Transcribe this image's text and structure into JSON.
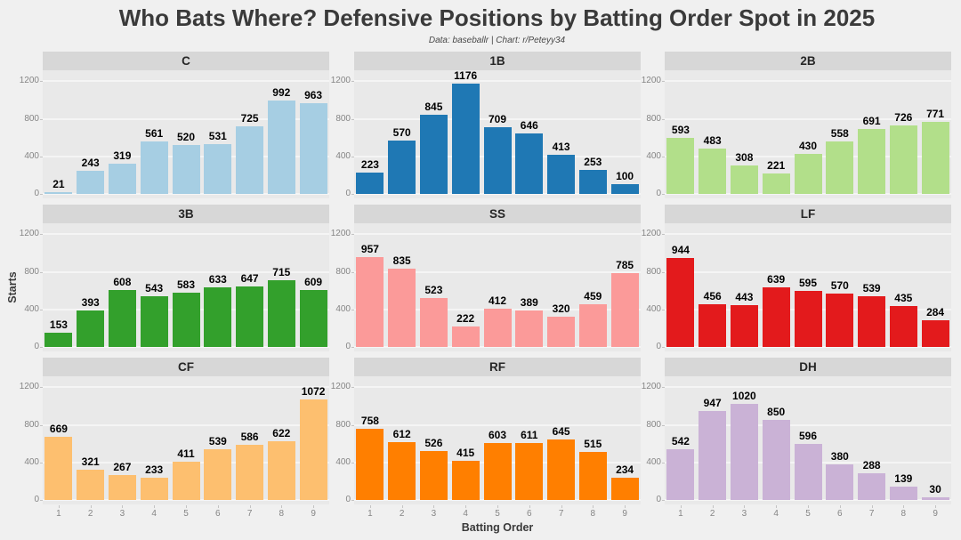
{
  "title": "Who Bats Where? Defensive Positions by Batting Order Spot in 2025",
  "subtitle": "Data: baseballr | Chart: r/Peteyy34",
  "chart_data": {
    "type": "bar",
    "layout": "3x3-facet-grid",
    "x": [
      1,
      2,
      3,
      4,
      5,
      6,
      7,
      8,
      9
    ],
    "xlabel": "Batting Order",
    "ylabel": "Starts",
    "yticks": [
      0,
      400,
      800,
      1200
    ],
    "ylim": [
      0,
      1200
    ],
    "grid": "major horizontal white lines on gray panel",
    "facets": [
      {
        "label": "C",
        "color": "#A6CEE3",
        "values": [
          21,
          243,
          319,
          561,
          520,
          531,
          725,
          992,
          963
        ]
      },
      {
        "label": "1B",
        "color": "#1F78B4",
        "values": [
          223,
          570,
          845,
          1176,
          709,
          646,
          413,
          253,
          100
        ]
      },
      {
        "label": "2B",
        "color": "#B2DF8A",
        "values": [
          593,
          483,
          308,
          221,
          430,
          558,
          691,
          726,
          771
        ]
      },
      {
        "label": "3B",
        "color": "#33A02C",
        "values": [
          153,
          393,
          608,
          543,
          583,
          633,
          647,
          715,
          609
        ]
      },
      {
        "label": "SS",
        "color": "#FB9A99",
        "values": [
          957,
          835,
          523,
          222,
          412,
          389,
          320,
          459,
          785
        ]
      },
      {
        "label": "LF",
        "color": "#E31A1C",
        "values": [
          944,
          456,
          443,
          639,
          595,
          570,
          539,
          435,
          284
        ]
      },
      {
        "label": "CF",
        "color": "#FDBF6F",
        "values": [
          669,
          321,
          267,
          233,
          411,
          539,
          586,
          622,
          1072
        ]
      },
      {
        "label": "RF",
        "color": "#FF7F00",
        "values": [
          758,
          612,
          526,
          415,
          603,
          611,
          645,
          515,
          234
        ]
      },
      {
        "label": "DH",
        "color": "#CAB2D6",
        "values": [
          542,
          947,
          1020,
          850,
          596,
          380,
          288,
          139,
          30
        ]
      }
    ]
  },
  "colors": {
    "page_bg": "#F0F0F0",
    "panel_bg": "#E9E9E9",
    "strip_bg": "#D7D7D7",
    "gridline": "#F5F5F5",
    "tick": "#C3C3C3",
    "axis_text": "#858585",
    "title_text": "#3A3A3A",
    "label_text": "#000000"
  }
}
